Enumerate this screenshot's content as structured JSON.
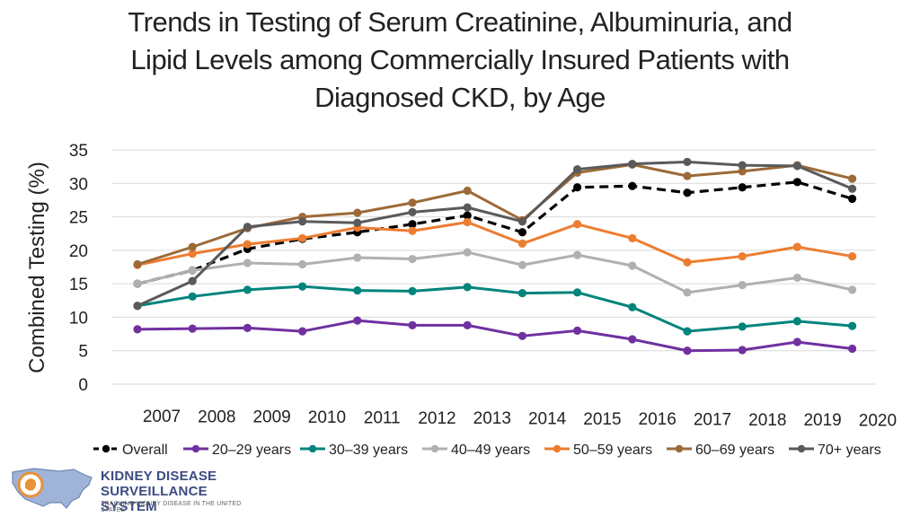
{
  "title": {
    "line1": "Trends in Testing of Serum Creatinine, Albuminuria, and",
    "line2": "Lipid Levels among Commercially Insured Patients with",
    "line3": "Diagnosed CKD, by Age"
  },
  "chart_data": {
    "type": "line",
    "title": "Trends in Testing of Serum Creatinine, Albuminuria, and Lipid Levels among Commercially Insured Patients with Diagnosed CKD, by Age",
    "xlabel": "",
    "ylabel": "Combined Testing (%)",
    "ylim": [
      0,
      35
    ],
    "yticks": [
      0,
      5,
      10,
      15,
      20,
      25,
      30,
      35
    ],
    "grid": true,
    "legend_position": "bottom",
    "categories": [
      "2007",
      "2008",
      "2009",
      "2010",
      "2011",
      "2012",
      "2013",
      "2014",
      "2015",
      "2016",
      "2017",
      "2018",
      "2019",
      "2020"
    ],
    "series": [
      {
        "name": "Overall",
        "color": "#000000",
        "dashed": true,
        "values": [
          15.0,
          17.0,
          20.2,
          21.7,
          22.7,
          23.9,
          25.2,
          22.7,
          29.4,
          29.6,
          28.6,
          29.4,
          30.2,
          27.7
        ]
      },
      {
        "name": "20–29 years",
        "color": "#7030a0",
        "dashed": false,
        "values": [
          8.2,
          8.3,
          8.4,
          7.9,
          9.5,
          8.8,
          8.8,
          7.2,
          8.0,
          6.7,
          5.0,
          5.1,
          6.3,
          5.3
        ]
      },
      {
        "name": "30–39 years",
        "color": "#00847c",
        "dashed": false,
        "values": [
          11.7,
          13.1,
          14.1,
          14.6,
          14.0,
          13.9,
          14.5,
          13.6,
          13.7,
          11.5,
          7.9,
          8.6,
          9.4,
          8.7
        ]
      },
      {
        "name": "40–49 years",
        "color": "#b0b0b0",
        "dashed": false,
        "values": [
          15.0,
          17.0,
          18.1,
          17.9,
          18.9,
          18.7,
          19.7,
          17.8,
          19.3,
          17.7,
          13.7,
          14.8,
          15.9,
          14.1
        ]
      },
      {
        "name": "50–59 years",
        "color": "#ed7d31",
        "dashed": false,
        "values": [
          17.8,
          19.5,
          20.9,
          21.8,
          23.4,
          22.9,
          24.2,
          21.0,
          23.9,
          21.8,
          18.2,
          19.1,
          20.5,
          19.1
        ]
      },
      {
        "name": "60–69 years",
        "color": "#9c6a38",
        "dashed": false,
        "values": [
          17.9,
          20.5,
          23.3,
          25.0,
          25.6,
          27.1,
          28.9,
          24.5,
          31.6,
          32.8,
          31.1,
          31.8,
          32.7,
          30.7
        ]
      },
      {
        "name": "70+ years",
        "color": "#5a5a5a",
        "dashed": false,
        "values": [
          11.7,
          15.4,
          23.5,
          24.3,
          24.1,
          25.7,
          26.4,
          24.3,
          32.1,
          32.9,
          33.2,
          32.7,
          32.6,
          29.2
        ]
      }
    ]
  },
  "logo": {
    "name_line1": "KIDNEY DISEASE",
    "name_line2": "SURVEILLANCE SYSTEM",
    "tagline": "TRACKING KIDNEY DISEASE IN THE UNITED STATES",
    "colors": {
      "map": "#9fb4d6",
      "circle": "#e8923a",
      "text": "#3c4b82"
    }
  }
}
